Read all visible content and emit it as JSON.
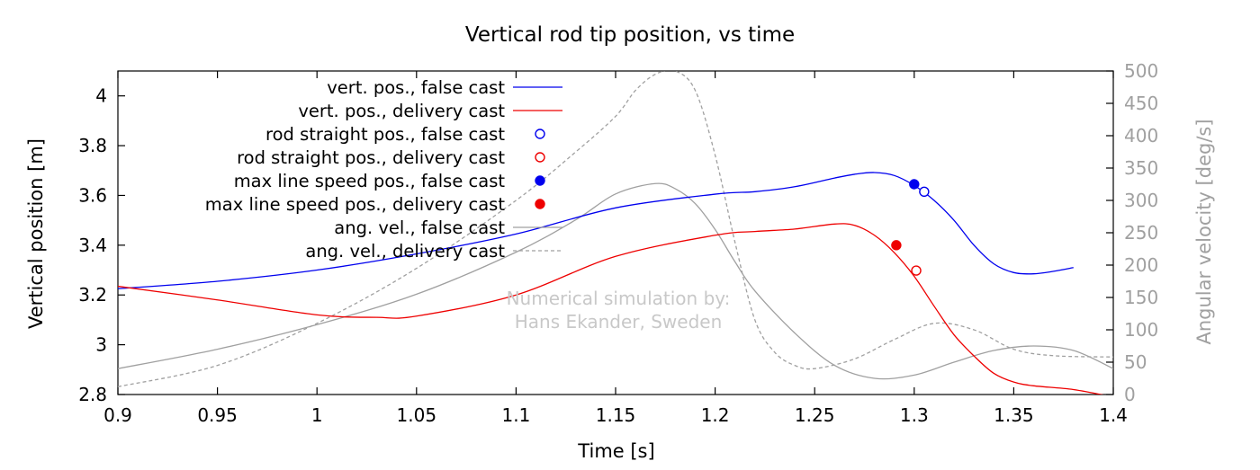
{
  "chart_data": {
    "type": "line",
    "title": "Vertical rod tip position, vs time",
    "xlabel": "Time [s]",
    "ylabel": "Vertical position [m]",
    "y2label": "Angular velocity [deg/s]",
    "xlim": [
      0.9,
      1.4
    ],
    "ylim": [
      2.8,
      4.1
    ],
    "y2lim": [
      0,
      500
    ],
    "xticks": [
      0.9,
      0.95,
      1,
      1.05,
      1.1,
      1.15,
      1.2,
      1.25,
      1.3,
      1.35,
      1.4
    ],
    "xtick_labels": [
      "0.9",
      "0.95",
      "1",
      "1.05",
      "1.1",
      "1.15",
      "1.2",
      "1.25",
      "1.3",
      "1.35",
      "1.4"
    ],
    "yticks": [
      2.8,
      3.0,
      3.2,
      3.4,
      3.6,
      3.8,
      4.0
    ],
    "ytick_labels": [
      "2.8",
      "3",
      "3.2",
      "3.4",
      "3.6",
      "3.8",
      "4"
    ],
    "y2ticks": [
      0,
      50,
      100,
      150,
      200,
      250,
      300,
      350,
      400,
      450,
      500
    ],
    "y2tick_labels": [
      "0",
      "50",
      "100",
      "150",
      "200",
      "250",
      "300",
      "350",
      "400",
      "450",
      "500"
    ],
    "grid": false,
    "legend_position": "top-left",
    "annotation": [
      "Numerical simulation by:",
      "Hans Ekander, Sweden"
    ],
    "colors": {
      "false_cast": "#0000ee",
      "delivery_cast": "#ee0000",
      "ang_vel": "#a0a0a0"
    },
    "series": [
      {
        "name": "vert. pos., false cast",
        "axis": "left",
        "kind": "line",
        "color": "#0000ee",
        "dash": "solid",
        "x": [
          0.9,
          0.95,
          1.0,
          1.05,
          1.1,
          1.15,
          1.2,
          1.22,
          1.24,
          1.26,
          1.27,
          1.28,
          1.29,
          1.3,
          1.31,
          1.32,
          1.33,
          1.34,
          1.35,
          1.36,
          1.37,
          1.38
        ],
        "y": [
          3.225,
          3.255,
          3.3,
          3.365,
          3.445,
          3.55,
          3.605,
          3.615,
          3.635,
          3.67,
          3.685,
          3.692,
          3.68,
          3.64,
          3.58,
          3.5,
          3.4,
          3.325,
          3.29,
          3.285,
          3.295,
          3.31
        ]
      },
      {
        "name": "vert. pos., delivery cast",
        "axis": "left",
        "kind": "line",
        "color": "#ee0000",
        "dash": "solid",
        "x": [
          0.9,
          0.95,
          1.0,
          1.03,
          1.05,
          1.1,
          1.15,
          1.2,
          1.22,
          1.24,
          1.26,
          1.27,
          1.28,
          1.29,
          1.3,
          1.31,
          1.32,
          1.33,
          1.34,
          1.35,
          1.36,
          1.38,
          1.4
        ],
        "y": [
          3.235,
          3.18,
          3.12,
          3.11,
          3.115,
          3.2,
          3.355,
          3.44,
          3.455,
          3.465,
          3.485,
          3.48,
          3.44,
          3.37,
          3.275,
          3.155,
          3.04,
          2.955,
          2.885,
          2.85,
          2.835,
          2.82,
          2.79
        ]
      },
      {
        "name": "rod straight pos., false cast",
        "axis": "left",
        "kind": "marker-open",
        "color": "#0000ee",
        "x": [
          1.305
        ],
        "y": [
          3.615
        ]
      },
      {
        "name": "rod straight pos., delivery cast",
        "axis": "left",
        "kind": "marker-open",
        "color": "#ee0000",
        "x": [
          1.301
        ],
        "y": [
          3.298
        ]
      },
      {
        "name": "max line speed pos., false cast",
        "axis": "left",
        "kind": "marker-filled",
        "color": "#0000ee",
        "x": [
          1.3
        ],
        "y": [
          3.645
        ]
      },
      {
        "name": "max line speed pos., delivery cast",
        "axis": "left",
        "kind": "marker-filled",
        "color": "#ee0000",
        "x": [
          1.291
        ],
        "y": [
          3.4
        ]
      },
      {
        "name": "ang. vel., false cast",
        "axis": "right",
        "kind": "line",
        "color": "#a0a0a0",
        "dash": "solid",
        "x": [
          0.9,
          0.95,
          1.0,
          1.05,
          1.1,
          1.13,
          1.15,
          1.17,
          1.18,
          1.19,
          1.2,
          1.21,
          1.22,
          1.24,
          1.26,
          1.28,
          1.3,
          1.32,
          1.34,
          1.36,
          1.38,
          1.4
        ],
        "y": [
          40,
          70,
          108,
          155,
          220,
          270,
          310,
          326,
          318,
          295,
          255,
          205,
          160,
          95,
          45,
          25,
          30,
          50,
          68,
          75,
          68,
          40
        ]
      },
      {
        "name": "ang. vel., delivery cast",
        "axis": "right",
        "kind": "line",
        "color": "#a0a0a0",
        "dash": "dashed",
        "x": [
          0.9,
          0.95,
          1.0,
          1.05,
          1.1,
          1.13,
          1.15,
          1.16,
          1.17,
          1.18,
          1.19,
          1.2,
          1.21,
          1.22,
          1.23,
          1.24,
          1.25,
          1.27,
          1.29,
          1.31,
          1.33,
          1.35,
          1.37,
          1.4
        ],
        "y": [
          12,
          45,
          110,
          195,
          300,
          375,
          430,
          470,
          495,
          500,
          470,
          370,
          235,
          115,
          65,
          45,
          40,
          55,
          85,
          110,
          100,
          70,
          60,
          58
        ]
      }
    ]
  }
}
